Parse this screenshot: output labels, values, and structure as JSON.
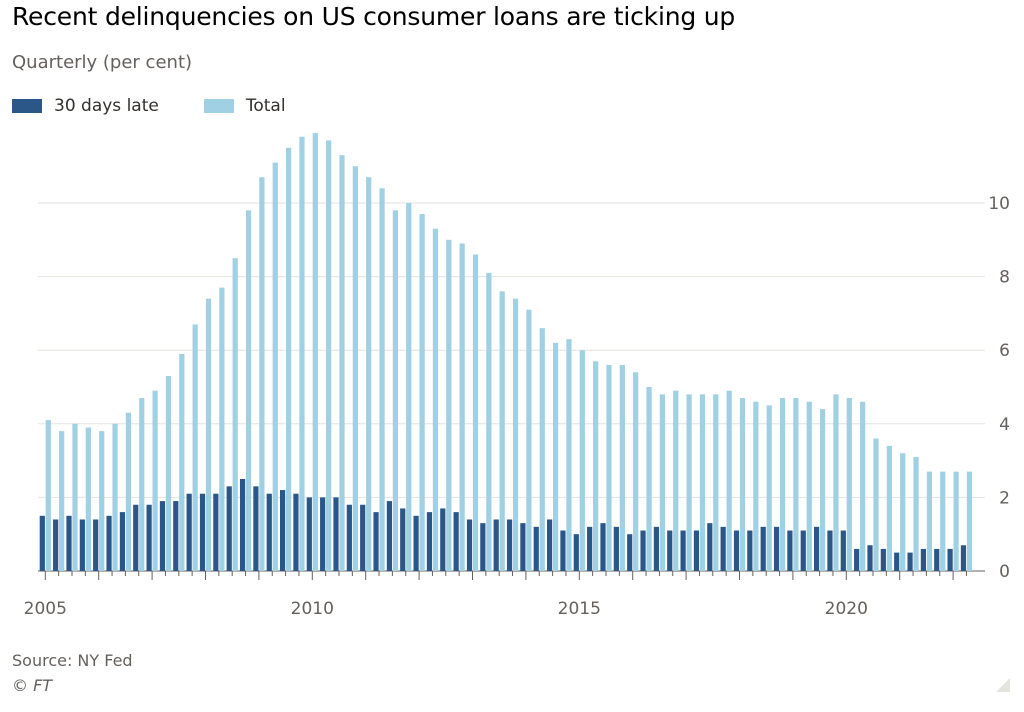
{
  "header": {
    "title": "Recent delinquencies on US consumer loans are ticking up",
    "subtitle": "Quarterly (per cent)"
  },
  "footer": {
    "source": "Source: NY Fed",
    "copyright": "© FT"
  },
  "colors": {
    "thirty_days_late": "#2a5788",
    "total": "#9fd0e3",
    "gridline": "#e6e2de",
    "axis_text": "#66605c"
  },
  "chart_data": {
    "type": "bar",
    "title": "Recent delinquencies on US consumer loans are ticking up",
    "subtitle": "Quarterly (per cent)",
    "x_tick_labels": [
      "2005",
      "2010",
      "2015",
      "2020"
    ],
    "y_tick_labels": [
      "0",
      "2",
      "4",
      "6",
      "8",
      "10"
    ],
    "ylim": [
      0,
      12
    ],
    "grid": true,
    "y_axis_position": "right",
    "legend_position": "top-left",
    "x_start": "2005 Q1",
    "x_end": "2022 Q2",
    "series": [
      {
        "name": "30 days late",
        "color": "#2a5788",
        "values": [
          1.5,
          1.4,
          1.5,
          1.4,
          1.4,
          1.5,
          1.6,
          1.8,
          1.8,
          1.9,
          1.9,
          2.1,
          2.1,
          2.1,
          2.3,
          2.5,
          2.3,
          2.1,
          2.2,
          2.1,
          2.0,
          2.0,
          2.0,
          1.8,
          1.8,
          1.6,
          1.9,
          1.7,
          1.5,
          1.6,
          1.7,
          1.6,
          1.4,
          1.3,
          1.4,
          1.4,
          1.3,
          1.2,
          1.4,
          1.1,
          1.0,
          1.2,
          1.3,
          1.2,
          1.0,
          1.1,
          1.2,
          1.1,
          1.1,
          1.1,
          1.3,
          1.2,
          1.1,
          1.1,
          1.2,
          1.2,
          1.1,
          1.1,
          1.2,
          1.1,
          1.1,
          0.6,
          0.7,
          0.6,
          0.5,
          0.5,
          0.6,
          0.6,
          0.6,
          0.7
        ]
      },
      {
        "name": "Total",
        "color": "#9fd0e3",
        "values": [
          4.1,
          3.8,
          4.0,
          3.9,
          3.8,
          4.0,
          4.3,
          4.7,
          4.9,
          5.3,
          5.9,
          6.7,
          7.4,
          7.7,
          8.5,
          9.8,
          10.7,
          11.1,
          11.5,
          11.8,
          11.9,
          11.7,
          11.3,
          11.0,
          10.7,
          10.4,
          9.8,
          10.0,
          9.7,
          9.3,
          9.0,
          8.9,
          8.6,
          8.1,
          7.6,
          7.4,
          7.1,
          6.6,
          6.2,
          6.3,
          6.0,
          5.7,
          5.6,
          5.6,
          5.4,
          5.0,
          4.8,
          4.9,
          4.8,
          4.8,
          4.8,
          4.9,
          4.7,
          4.6,
          4.5,
          4.7,
          4.7,
          4.6,
          4.4,
          4.8,
          4.7,
          4.6,
          3.6,
          3.4,
          3.2,
          3.1,
          2.7,
          2.7,
          2.7,
          2.7
        ]
      }
    ]
  }
}
